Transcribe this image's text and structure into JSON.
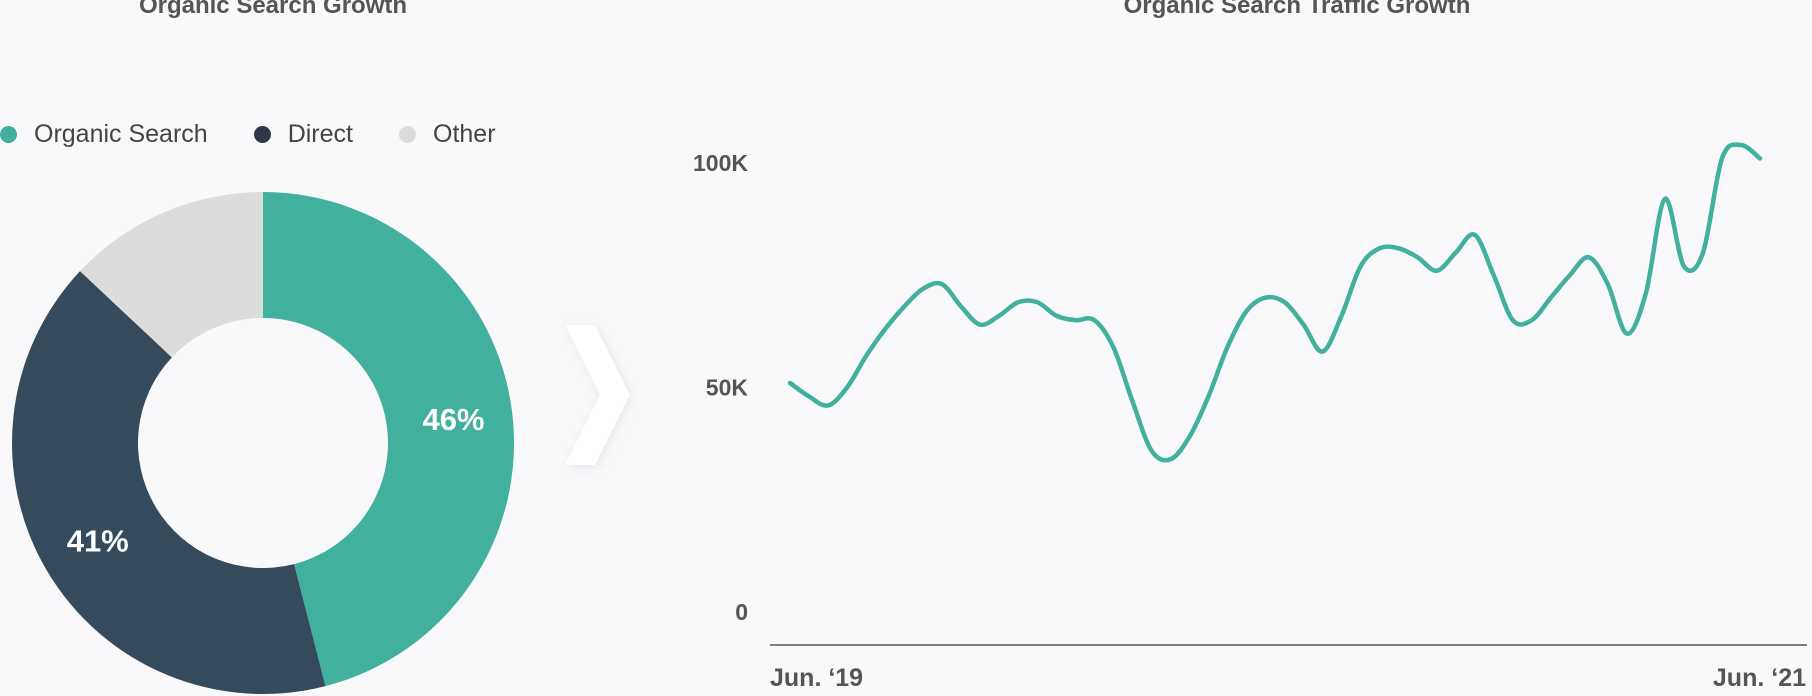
{
  "chart_data": [
    {
      "type": "pie",
      "title": "Organic Search Growth",
      "donut": true,
      "legend_position": "top-left",
      "slices": [
        {
          "name": "Organic Search",
          "value": 46,
          "label": "46%",
          "color": "#41b09c"
        },
        {
          "name": "Direct",
          "value": 41,
          "label": "41%",
          "color": "#354a5b"
        },
        {
          "name": "Other",
          "value": 13,
          "label": "",
          "color": "#dcdcdc"
        }
      ],
      "legend_colors": [
        "#41b09c",
        "#2e3848",
        "#dcdcdc"
      ]
    },
    {
      "type": "line",
      "title": "Organic Search Traffic Growth",
      "xlabel": "",
      "ylabel": "",
      "ylim": [
        0,
        100000
      ],
      "y_ticks": [
        {
          "value": 0,
          "label": "0"
        },
        {
          "value": 50000,
          "label": "50K"
        },
        {
          "value": 100000,
          "label": "100K"
        }
      ],
      "x_tick_labels": [
        "Jun. ‘19",
        "Jun. ‘21"
      ],
      "grid": false,
      "color": "#41b09c",
      "series": [
        {
          "values": [
            51000,
            48000,
            46000,
            50000,
            57000,
            63000,
            68000,
            72000,
            73000,
            68000,
            64000,
            66000,
            69000,
            69000,
            66000,
            65000,
            65000,
            59000,
            47000,
            36000,
            34000,
            39000,
            48000,
            59000,
            67000,
            70000,
            69000,
            64000,
            58000,
            66000,
            77000,
            81000,
            81000,
            79000,
            76000,
            80000,
            84000,
            75000,
            65000,
            65000,
            70000,
            75000,
            79000,
            73000,
            62000,
            71000,
            92000,
            77000,
            80000,
            101000,
            104000,
            101000
          ]
        }
      ]
    }
  ]
}
